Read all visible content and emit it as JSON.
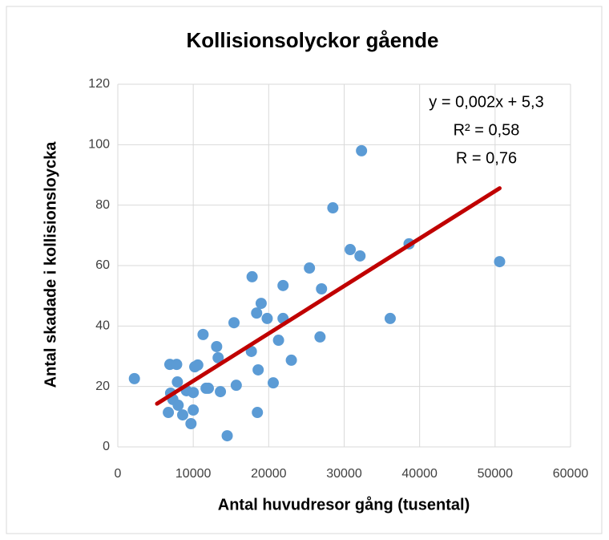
{
  "chart_data": {
    "type": "scatter",
    "title": "Kollisionsolyckor gående",
    "x_label": "Antal huvudresor gång (tusental)",
    "y_label": "Antal skadade i kollisionsloycka",
    "xlim": [
      0,
      60000
    ],
    "xticks": [
      0,
      10000,
      20000,
      30000,
      40000,
      50000,
      60000
    ],
    "ylim": [
      0,
      120
    ],
    "yticks": [
      0,
      20,
      40,
      60,
      80,
      100,
      120
    ],
    "grid": true,
    "series": [
      {
        "color": "#5b9bd5",
        "x": [
          2200,
          6700,
          6900,
          7800,
          7000,
          7300,
          7900,
          8000,
          8600,
          9100,
          9700,
          10000,
          10000,
          10200,
          10600,
          11300,
          11700,
          12000,
          13100,
          13300,
          13600,
          14500,
          15400,
          15700,
          17800,
          17700,
          18400,
          18500,
          18600,
          19000,
          19800,
          20600,
          21300,
          21900,
          21900,
          23000,
          25400,
          26800,
          27000,
          28500,
          30800,
          32100,
          32300,
          36100,
          38600,
          50600
        ],
        "values": [
          22.6,
          11.4,
          27.3,
          27.3,
          17.8,
          15.7,
          21.5,
          13.8,
          10.6,
          18.6,
          7.7,
          12.2,
          18,
          26.5,
          27.1,
          37.2,
          19.4,
          19.4,
          33.2,
          29.5,
          18.3,
          3.7,
          41.1,
          20.4,
          56.3,
          31.6,
          44.3,
          11.4,
          25.5,
          47.5,
          42.5,
          21.2,
          35.3,
          53.4,
          42.5,
          28.7,
          59.2,
          36.4,
          52.3,
          79.1,
          65.3,
          63.2,
          98,
          42.5,
          67.2,
          61.3
        ]
      }
    ],
    "trendline": {
      "color": "#c00000",
      "x": [
        5200,
        50600
      ],
      "values": [
        14.3,
        85.6
      ]
    },
    "annotations": [
      "y = 0,002x + 5,3",
      "R² = 0,58",
      "R = 0,76"
    ]
  }
}
